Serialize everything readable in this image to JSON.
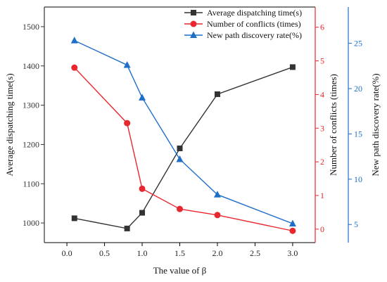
{
  "chart_data": {
    "type": "line",
    "xlabel": "The value of β",
    "x_ticks": [
      0.0,
      0.5,
      1.0,
      1.5,
      2.0,
      2.5,
      3.0
    ],
    "x_tick_labels": [
      "0.0",
      "0.5",
      "1.0",
      "1.5",
      "2.0",
      "2.5",
      "3.0"
    ],
    "xlim": [
      -0.3,
      3.3
    ],
    "legend_position": "top-right",
    "grid": false,
    "axes": [
      {
        "id": "left",
        "label": "Average dispatching time(s)",
        "color": "#333333",
        "ylim": [
          950,
          1550
        ],
        "ticks": [
          1000,
          1100,
          1200,
          1300,
          1400,
          1500
        ]
      },
      {
        "id": "right1",
        "label": "Number of conflicts (times)",
        "color": "#e8272f",
        "ylim": [
          -0.4,
          6.6
        ],
        "ticks": [
          0,
          1,
          2,
          3,
          4,
          5,
          6
        ]
      },
      {
        "id": "right2",
        "label": "New path discovery rate(%)",
        "color": "#1f6fc9",
        "ylim": [
          3,
          29
        ],
        "ticks": [
          5,
          10,
          15,
          20,
          25
        ]
      }
    ],
    "series": [
      {
        "name": "Average dispatching time(s)",
        "axis": "left",
        "color": "#333333",
        "marker": "square",
        "x": [
          0.1,
          0.8,
          1.0,
          1.5,
          2.0,
          3.0
        ],
        "values": [
          1012,
          986,
          1026,
          1190,
          1328,
          1397
        ]
      },
      {
        "name": "Number of conflicts (times)",
        "axis": "right1",
        "color": "#e8272f",
        "marker": "circle",
        "x": [
          0.1,
          0.8,
          1.0,
          1.5,
          2.0,
          3.0
        ],
        "values": [
          4.8,
          3.15,
          1.2,
          0.6,
          0.42,
          -0.05
        ]
      },
      {
        "name": "New path discovery rate(%)",
        "axis": "right2",
        "color": "#1f6fc9",
        "marker": "triangle",
        "x": [
          0.1,
          0.8,
          1.0,
          1.5,
          2.0,
          3.0
        ],
        "values": [
          25.3,
          22.6,
          19.0,
          12.2,
          8.3,
          5.1
        ]
      }
    ]
  }
}
